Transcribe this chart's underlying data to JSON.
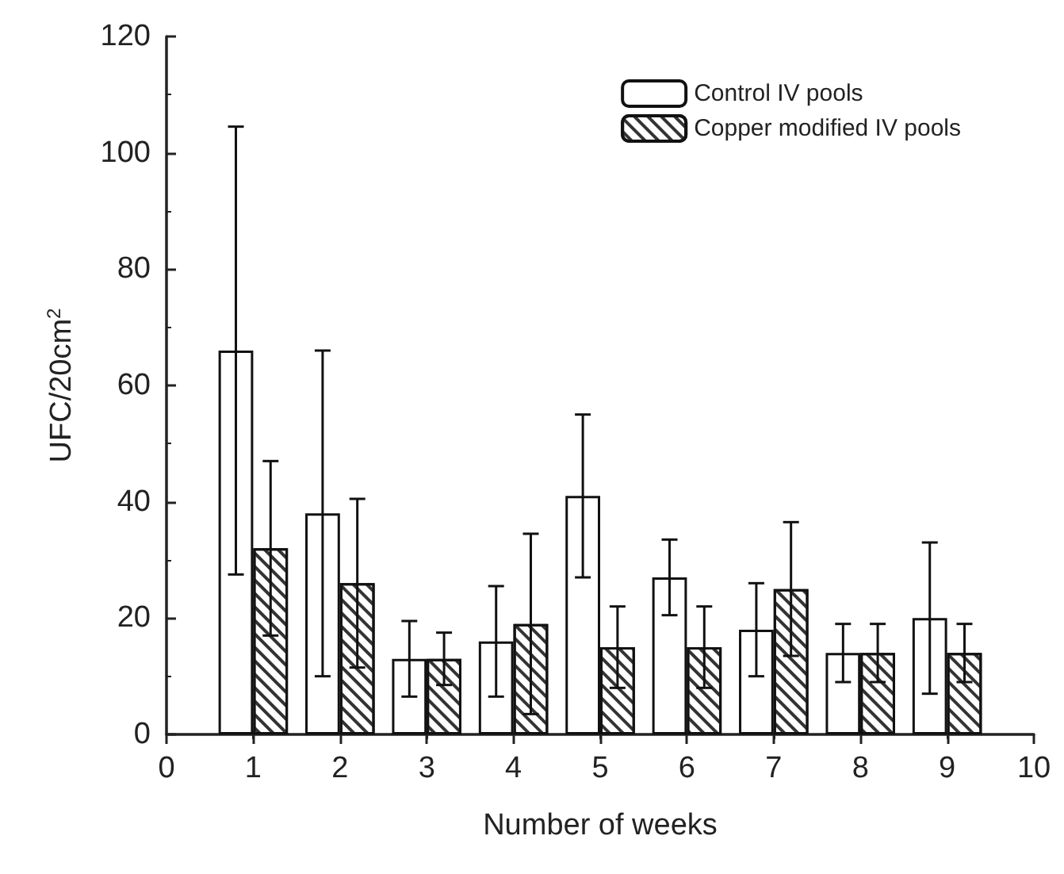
{
  "chart_data": {
    "type": "bar",
    "xlabel": "Number of weeks",
    "ylabel": "UFC/20cm$^{2}$",
    "x": [
      1,
      2,
      3,
      4,
      5,
      6,
      7,
      8,
      9
    ],
    "series": [
      {
        "name": "Control IV pools",
        "color": "#ffffff",
        "values": [
          66,
          38,
          13,
          16,
          41,
          27,
          18,
          14,
          20
        ],
        "errors": [
          38.5,
          28,
          6.5,
          9.5,
          14,
          6.5,
          8,
          5,
          13
        ]
      },
      {
        "name": "Copper modified IV pools",
        "color": "#ffffff",
        "values": [
          32,
          26,
          13,
          19,
          15,
          15,
          25,
          14,
          14
        ],
        "errors": [
          15,
          14.5,
          4.5,
          15.5,
          7,
          7,
          11.5,
          5,
          5
        ]
      }
    ],
    "xlim": [
      0,
      10
    ],
    "xticks": [
      0,
      1,
      2,
      3,
      4,
      5,
      6,
      7,
      8,
      9,
      10
    ],
    "ylim": [
      0,
      120
    ],
    "yticks": [
      0,
      20,
      40,
      60,
      80,
      100,
      120
    ],
    "grid": false,
    "legend": "top right"
  }
}
